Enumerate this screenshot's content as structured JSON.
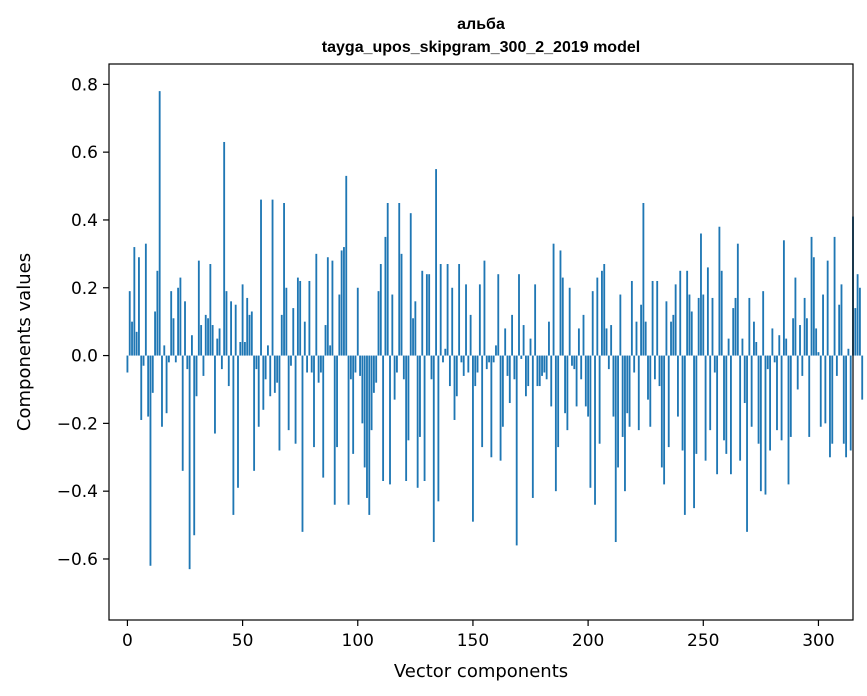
{
  "chart_data": {
    "type": "bar",
    "title": "альба",
    "subtitle": "tayga_upos_skipgram_300_2_2019 model",
    "xlabel": "Vector components",
    "ylabel": "Components values",
    "xlim": [
      -8,
      315
    ],
    "ylim": [
      -0.78,
      0.86
    ],
    "xticks": [
      0,
      50,
      100,
      150,
      200,
      250,
      300
    ],
    "yticks": [
      -0.6,
      -0.4,
      -0.2,
      0.0,
      0.2,
      0.4,
      0.6,
      0.8
    ],
    "ytick_labels": [
      "−0.6",
      "−0.4",
      "−0.2",
      "0.0",
      "0.2",
      "0.4",
      "0.6",
      "0.8"
    ],
    "bar_color": "#1f77b4",
    "grid": false,
    "values": [
      -0.05,
      0.19,
      0.1,
      0.32,
      0.07,
      0.29,
      -0.19,
      -0.03,
      0.33,
      -0.18,
      -0.62,
      -0.11,
      0.13,
      0.25,
      0.78,
      -0.21,
      0.03,
      -0.17,
      -0.02,
      0.19,
      0.11,
      -0.02,
      0.2,
      0.23,
      -0.34,
      0.16,
      -0.04,
      -0.63,
      0.06,
      -0.53,
      -0.12,
      0.28,
      0.09,
      -0.06,
      0.12,
      0.11,
      0.27,
      0.09,
      -0.23,
      0.05,
      0.08,
      -0.04,
      0.63,
      0.19,
      -0.09,
      0.16,
      -0.47,
      0.15,
      -0.39,
      0.04,
      0.21,
      0.04,
      0.17,
      0.12,
      0.13,
      -0.34,
      -0.04,
      -0.21,
      0.46,
      -0.16,
      -0.07,
      0.03,
      -0.12,
      0.46,
      -0.11,
      -0.08,
      -0.28,
      0.12,
      0.45,
      0.2,
      -0.22,
      -0.03,
      0.14,
      -0.26,
      0.23,
      0.22,
      -0.52,
      0.1,
      -0.05,
      0.22,
      -0.05,
      -0.27,
      0.3,
      -0.08,
      -0.05,
      -0.36,
      0.09,
      0.29,
      0.03,
      0.28,
      -0.44,
      -0.27,
      0.18,
      0.31,
      0.32,
      0.53,
      -0.44,
      -0.07,
      -0.29,
      -0.05,
      0.2,
      -0.06,
      -0.2,
      -0.33,
      -0.42,
      -0.47,
      -0.22,
      -0.11,
      -0.08,
      0.19,
      0.27,
      -0.37,
      0.35,
      0.45,
      -0.38,
      0.18,
      -0.13,
      -0.05,
      0.45,
      0.3,
      -0.07,
      -0.37,
      -0.25,
      0.42,
      0.11,
      0.16,
      -0.39,
      -0.24,
      0.25,
      -0.37,
      0.24,
      0.24,
      -0.07,
      -0.55,
      0.55,
      -0.43,
      0.27,
      -0.02,
      0.02,
      0.27,
      -0.09,
      0.2,
      -0.19,
      -0.12,
      0.27,
      -0.02,
      -0.06,
      0.21,
      -0.05,
      0.12,
      -0.49,
      -0.09,
      -0.05,
      0.21,
      -0.27,
      0.28,
      -0.04,
      -0.02,
      -0.3,
      -0.02,
      0.03,
      0.24,
      -0.31,
      -0.21,
      0.08,
      -0.06,
      -0.14,
      0.12,
      -0.07,
      -0.56,
      0.24,
      -0.01,
      0.09,
      -0.12,
      -0.09,
      0.05,
      -0.42,
      0.21,
      -0.09,
      -0.09,
      -0.06,
      -0.05,
      -0.07,
      0.1,
      -0.15,
      0.33,
      -0.4,
      -0.27,
      0.31,
      0.23,
      -0.17,
      -0.22,
      0.2,
      -0.03,
      -0.04,
      -0.15,
      0.08,
      -0.07,
      0.12,
      -0.15,
      -0.18,
      -0.39,
      0.19,
      -0.44,
      0.23,
      -0.26,
      0.25,
      0.27,
      0.08,
      -0.04,
      0.09,
      -0.18,
      -0.55,
      -0.33,
      0.18,
      -0.24,
      -0.4,
      -0.17,
      -0.21,
      0.22,
      -0.05,
      0.1,
      -0.22,
      0.15,
      0.45,
      0.1,
      -0.13,
      -0.21,
      0.22,
      -0.07,
      0.22,
      -0.09,
      -0.33,
      -0.38,
      0.16,
      -0.27,
      0.1,
      0.12,
      0.21,
      -0.18,
      0.25,
      -0.28,
      -0.47,
      0.25,
      0.18,
      0.13,
      -0.45,
      -0.29,
      0.17,
      0.36,
      0.18,
      -0.31,
      0.26,
      -0.22,
      0.17,
      -0.05,
      -0.35,
      0.38,
      0.25,
      -0.25,
      -0.29,
      0.05,
      -0.35,
      0.14,
      0.17,
      0.33,
      -0.31,
      0.05,
      -0.14,
      -0.52,
      0.17,
      -0.21,
      0.1,
      0.04,
      -0.26,
      -0.4,
      0.19,
      -0.41,
      -0.04,
      -0.28,
      0.08,
      -0.02,
      -0.22,
      0.06,
      -0.25,
      0.34,
      0.05,
      -0.38,
      -0.24,
      0.11,
      0.23,
      -0.1,
      0.09,
      -0.06,
      0.17,
      0.11,
      -0.24,
      0.35,
      0.29,
      0.08,
      0.01,
      -0.21,
      0.18,
      -0.2,
      0.28,
      -0.3,
      -0.26,
      0.35,
      -0.06,
      0.15,
      0.21,
      -0.26,
      -0.3,
      0.02,
      -0.28,
      0.41,
      0.14,
      0.24,
      0.2,
      -0.13
    ]
  }
}
